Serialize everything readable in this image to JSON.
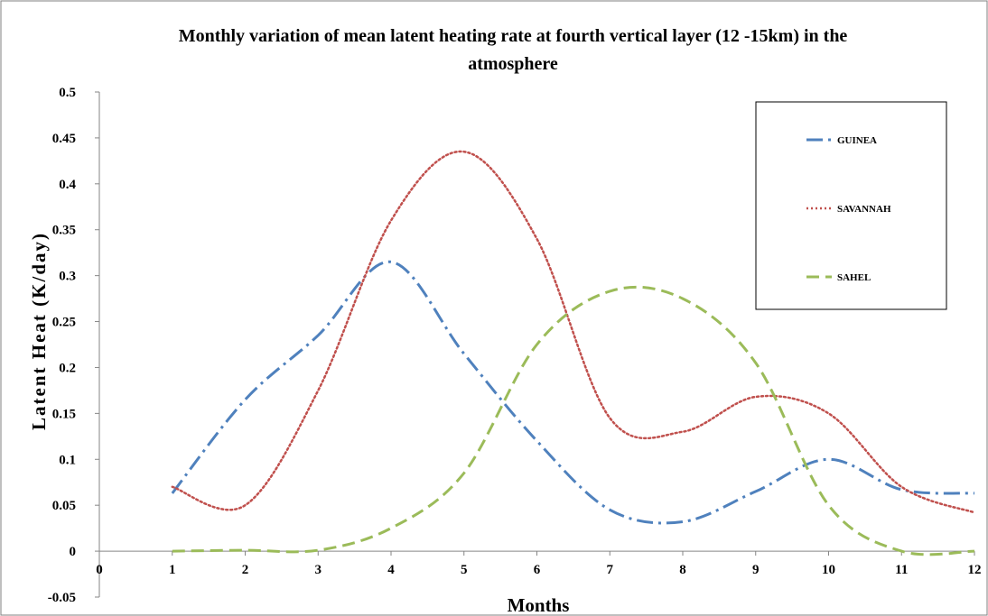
{
  "chart_data": {
    "type": "line",
    "title_line1": "Monthly variation of mean latent heating rate at fourth vertical layer (12 -15km) in the",
    "title_line2": "atmosphere",
    "xlabel": "Months",
    "ylabel": "Latent Heat (K/day)",
    "xlim": [
      0,
      12
    ],
    "ylim": [
      -0.05,
      0.5
    ],
    "x_ticks": [
      "0",
      "1",
      "2",
      "3",
      "4",
      "5",
      "6",
      "7",
      "8",
      "9",
      "10",
      "11",
      "12"
    ],
    "y_ticks": [
      "-0.05",
      "0",
      "0.05",
      "0.1",
      "0.15",
      "0.2",
      "0.25",
      "0.3",
      "0.35",
      "0.4",
      "0.45",
      "0.5"
    ],
    "grid": false,
    "legend_position": "top-right",
    "x": [
      1,
      2,
      3,
      4,
      5,
      6,
      7,
      8,
      9,
      10,
      11,
      12
    ],
    "series": [
      {
        "name": "GUINEA",
        "color": "#4F81BD",
        "dash": "dash-dot",
        "values": [
          0.063,
          0.165,
          0.235,
          0.315,
          0.215,
          0.12,
          0.045,
          0.032,
          0.065,
          0.1,
          0.067,
          0.063
        ]
      },
      {
        "name": "SAVANNAH",
        "color": "#C0504D",
        "dash": "dotted",
        "values": [
          0.07,
          0.05,
          0.175,
          0.36,
          0.435,
          0.34,
          0.145,
          0.13,
          0.168,
          0.15,
          0.07,
          0.042
        ]
      },
      {
        "name": "SAHEL",
        "color": "#9BBB59",
        "dash": "dashed",
        "values": [
          0.0,
          0.001,
          0.001,
          0.025,
          0.085,
          0.225,
          0.283,
          0.275,
          0.205,
          0.05,
          0.0,
          0.0
        ]
      }
    ]
  }
}
